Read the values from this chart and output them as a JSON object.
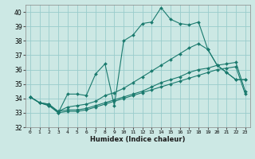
{
  "xlabel": "Humidex (Indice chaleur)",
  "x": [
    0,
    1,
    2,
    3,
    4,
    5,
    6,
    7,
    8,
    9,
    10,
    11,
    12,
    13,
    14,
    15,
    16,
    17,
    18,
    19,
    20,
    21,
    22,
    23
  ],
  "series1": [
    34.1,
    33.7,
    33.6,
    33.0,
    34.3,
    34.3,
    34.2,
    35.7,
    36.4,
    33.5,
    38.0,
    38.4,
    39.2,
    39.3,
    40.3,
    39.5,
    39.2,
    39.1,
    39.3,
    37.4,
    36.3,
    35.8,
    35.3,
    35.3
  ],
  "series2": [
    34.1,
    33.7,
    33.6,
    33.1,
    33.4,
    33.5,
    33.6,
    33.8,
    34.2,
    34.4,
    34.7,
    35.1,
    35.5,
    35.9,
    36.3,
    36.7,
    37.1,
    37.5,
    37.8,
    37.4,
    36.3,
    35.8,
    35.3,
    35.3
  ],
  "series3": [
    34.1,
    33.7,
    33.5,
    33.1,
    33.2,
    33.2,
    33.3,
    33.5,
    33.7,
    33.9,
    34.1,
    34.3,
    34.5,
    34.8,
    35.1,
    35.3,
    35.5,
    35.8,
    36.0,
    36.1,
    36.3,
    36.4,
    36.5,
    34.5
  ],
  "series4": [
    34.1,
    33.7,
    33.5,
    33.0,
    33.1,
    33.1,
    33.2,
    33.4,
    33.6,
    33.8,
    34.0,
    34.2,
    34.4,
    34.6,
    34.8,
    35.0,
    35.2,
    35.4,
    35.6,
    35.8,
    36.0,
    36.1,
    36.2,
    34.3
  ],
  "color": "#1a7a6e",
  "bg_color": "#cce8e4",
  "grid_color": "#99cccc",
  "ylim": [
    32,
    40.5
  ],
  "yticks": [
    32,
    33,
    34,
    35,
    36,
    37,
    38,
    39,
    40
  ],
  "xlim": [
    -0.5,
    23.5
  ]
}
